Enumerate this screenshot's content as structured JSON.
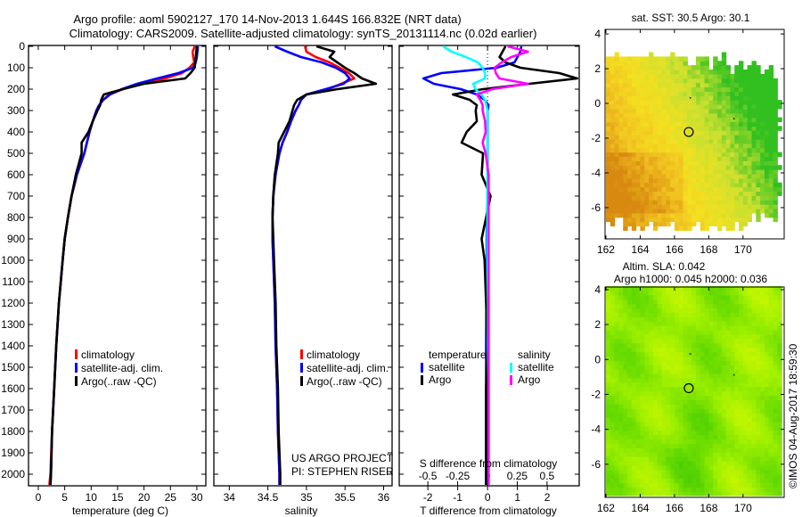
{
  "title": {
    "line1": "Argo profile: aoml 5902127_170 14-Nov-2013 1.644S 166.832E (NRT data)",
    "line2": "Climatology: CARS2009. Satellite-adjusted climatology: synTS_20131114.nc (0.02d earlier)"
  },
  "credit": "©IMOS 04-Aug-2017 18:59:30",
  "project": {
    "line1": "US ARGO PROJECT",
    "line2": "PI: STEPHEN RISER"
  },
  "colors": {
    "climatology": "#ff0000",
    "satellite": "#0000ff",
    "argo": "#000000",
    "sat_salinity": "#00ffff",
    "argo_salinity": "#ff00ff"
  },
  "depth_ticks": [
    "0",
    "100",
    "200",
    "300",
    "400",
    "500",
    "600",
    "700",
    "800",
    "900",
    "1000",
    "1100",
    "1200",
    "1300",
    "1400",
    "1500",
    "1600",
    "1700",
    "1800",
    "1900",
    "2000"
  ],
  "chart_data": [
    {
      "type": "line",
      "name": "temperature",
      "xlabel": "temperature (deg C)",
      "ylabel": "depth",
      "xlim": [
        -1.85,
        31.7
      ],
      "ylim": [
        2055,
        0
      ],
      "xticks": [
        "0",
        "5",
        "10",
        "15",
        "20",
        "25",
        "30"
      ],
      "legend": [
        "climatology",
        "satellite-adj. clim.",
        "Argo(..raw -QC)"
      ],
      "depth": [
        0,
        25,
        50,
        75,
        100,
        125,
        150,
        175,
        200,
        225,
        250,
        275,
        300,
        350,
        400,
        450,
        500,
        600,
        700,
        800,
        900,
        1000,
        1200,
        1400,
        1600,
        1800,
        2000,
        2050
      ],
      "series": [
        {
          "name": "climatology",
          "color": "#ff0000",
          "values": [
            29.6,
            29.2,
            29.3,
            29.5,
            28.6,
            27.2,
            24.0,
            19.5,
            16.0,
            13.4,
            12.3,
            11.5,
            11.0,
            10.3,
            9.7,
            9.2,
            8.7,
            7.3,
            6.3,
            5.6,
            5.0,
            4.6,
            3.9,
            3.4,
            3.0,
            2.6,
            2.3,
            2.1
          ]
        },
        {
          "name": "satellite-adj. clim.",
          "color": "#0000ff",
          "values": [
            30.2,
            30.1,
            30.0,
            29.8,
            29.3,
            26.5,
            22.5,
            18.7,
            15.8,
            13.6,
            12.3,
            11.5,
            11.0,
            10.3,
            9.7,
            9.2,
            8.7,
            7.3,
            6.3,
            5.6,
            5.0,
            4.6,
            3.9,
            3.4,
            3.0,
            2.6,
            2.4,
            2.3
          ]
        },
        {
          "name": "Argo(..raw -QC)",
          "color": "#000000",
          "values": [
            30.0,
            29.9,
            29.8,
            29.7,
            29.6,
            28.8,
            27.8,
            20.0,
            16.0,
            12.4,
            11.9,
            11.7,
            11.2,
            10.3,
            9.5,
            8.2,
            8.2,
            7.1,
            6.3,
            5.6,
            5.0,
            4.6,
            3.9,
            3.4,
            3.0,
            2.6,
            2.4,
            2.3
          ]
        }
      ]
    },
    {
      "type": "line",
      "name": "salinity",
      "xlabel": "salinity",
      "ylabel": "depth",
      "xlim": [
        33.8,
        36.11
      ],
      "ylim": [
        2055,
        0
      ],
      "xticks": [
        "34",
        "34.5",
        "35",
        "35.5",
        "36"
      ],
      "legend": [
        "climatology",
        "satellite-adj. clim.",
        "Argo(..raw -QC)"
      ],
      "depth": [
        0,
        25,
        50,
        75,
        100,
        125,
        150,
        175,
        200,
        225,
        250,
        275,
        300,
        350,
        400,
        450,
        500,
        600,
        700,
        800,
        900,
        1000,
        1200,
        1400,
        1600,
        1800,
        2000,
        2050
      ],
      "series": [
        {
          "name": "climatology",
          "color": "#ff0000",
          "values": [
            34.98,
            35.0,
            35.12,
            35.3,
            35.43,
            35.55,
            35.62,
            35.45,
            35.28,
            35.0,
            34.93,
            34.9,
            34.86,
            34.8,
            34.75,
            34.69,
            34.65,
            34.59,
            34.57,
            34.56,
            34.56,
            34.57,
            34.59,
            34.6,
            34.62,
            34.63,
            34.65,
            34.65
          ]
        },
        {
          "name": "satellite-adj. clim.",
          "color": "#0000ff",
          "values": [
            34.59,
            34.75,
            34.93,
            35.2,
            35.38,
            35.5,
            35.56,
            35.48,
            35.25,
            35.0,
            34.93,
            34.9,
            34.86,
            34.8,
            34.75,
            34.69,
            34.65,
            34.6,
            34.57,
            34.56,
            34.56,
            34.57,
            34.59,
            34.6,
            34.62,
            34.63,
            34.65,
            34.65
          ]
        },
        {
          "name": "Argo(..raw -QC)",
          "color": "#000000",
          "values": [
            35.13,
            35.36,
            35.3,
            35.4,
            35.5,
            35.62,
            35.72,
            35.9,
            35.4,
            35.0,
            34.88,
            34.84,
            34.82,
            34.78,
            34.71,
            34.64,
            34.63,
            34.59,
            34.57,
            34.56,
            34.57,
            34.58,
            34.6,
            34.61,
            34.63,
            34.64,
            34.66,
            34.66
          ]
        }
      ]
    },
    {
      "type": "line",
      "name": "difference",
      "xlabel": "T difference from climatology",
      "x2label": "S difference from climatology",
      "ylabel": "depth",
      "xlim": [
        -2.96,
        3.07
      ],
      "x2lim": [
        -0.74,
        0.77
      ],
      "ylim": [
        2055,
        0
      ],
      "xticks": [
        "-2",
        "-1",
        "0",
        "1",
        "2"
      ],
      "x2ticks": [
        "-0.5",
        "-0.25",
        "0",
        "0.25",
        "0.5"
      ],
      "legend": {
        "temperature": "temperature",
        "salinity": "salinity",
        "satellite": "satellite",
        "argo": "Argo"
      },
      "depth": [
        0,
        25,
        50,
        75,
        100,
        125,
        150,
        175,
        200,
        225,
        250,
        275,
        300,
        350,
        400,
        450,
        500,
        600,
        700,
        800,
        900,
        1000,
        1200,
        1400,
        1600,
        1800,
        2000,
        2050
      ],
      "series": [
        {
          "name": "T satellite",
          "axis": "T",
          "color": "#0000ff",
          "values": [
            1.13,
            1.1,
            1.0,
            0.9,
            0.3,
            -1.55,
            -2.15,
            -1.8,
            -0.9,
            -0.35,
            -0.1,
            0.03,
            0.0,
            0.0,
            0.0,
            0.0,
            0.0,
            0.0,
            0.0,
            -0.02,
            -0.03,
            -0.03,
            -0.04,
            -0.05,
            -0.05,
            -0.05,
            -0.05,
            -0.05
          ]
        },
        {
          "name": "T Argo",
          "axis": "T",
          "color": "#000000",
          "values": [
            0.6,
            0.5,
            0.4,
            0.6,
            1.1,
            2.4,
            3.0,
            1.4,
            -0.15,
            -1.16,
            -0.6,
            -0.36,
            -0.4,
            -0.36,
            -0.7,
            -0.87,
            -0.15,
            -0.2,
            0.1,
            -0.05,
            -0.2,
            -0.1,
            -0.05,
            0.0,
            -0.05,
            -0.05,
            -0.05,
            -0.05
          ]
        },
        {
          "name": "S satellite",
          "axis": "S",
          "color": "#00ffff",
          "values": [
            -0.37,
            -0.3,
            -0.18,
            -0.08,
            -0.04,
            -0.02,
            -0.02,
            -0.12,
            -0.1,
            -0.05,
            -0.02,
            -0.01,
            0.0,
            0.0,
            0.0,
            0.0,
            0.0,
            0.0,
            0.0,
            0.0,
            0.0,
            0.0,
            0.005,
            0.005,
            0.01,
            0.01,
            0.01,
            0.01
          ]
        },
        {
          "name": "S Argo",
          "axis": "S",
          "color": "#ff00ff",
          "values": [
            0.17,
            0.34,
            0.2,
            0.12,
            0.06,
            0.07,
            0.1,
            0.34,
            0.04,
            -0.09,
            -0.06,
            -0.04,
            -0.04,
            -0.02,
            -0.015,
            -0.04,
            -0.015,
            0.01,
            0.01,
            0.01,
            0.01,
            0.01,
            0.01,
            0.01,
            0.01,
            0.01,
            0.01,
            0.01
          ]
        }
      ]
    },
    {
      "type": "heatmap",
      "name": "sst-map",
      "title": "sat. SST: 30.5 Argo: 30.1",
      "xlim": [
        161.95,
        172.4
      ],
      "ylim": [
        -7.8,
        4.26
      ],
      "xticks": [
        "162",
        "164",
        "166",
        "168",
        "170"
      ],
      "yticks": [
        "4",
        "2",
        "0",
        "-2",
        "-4",
        "-6"
      ],
      "profile_location": [
        166.832,
        -1.644
      ],
      "palette": [
        "#d88a10",
        "#f0c020",
        "#f4e020",
        "#c8e030",
        "#30c020"
      ]
    },
    {
      "type": "heatmap",
      "name": "sla-map",
      "title": "Altim. SLA: 0.042",
      "subtitle": "Argo h1000: 0.045 h2000: 0.036",
      "xlim": [
        161.95,
        172.4
      ],
      "ylim": [
        -7.9,
        4.15
      ],
      "xticks": [
        "162",
        "164",
        "166",
        "168",
        "170"
      ],
      "yticks": [
        "4",
        "2",
        "0",
        "-2",
        "-4",
        "-6"
      ],
      "profile_location": [
        166.832,
        -1.644
      ],
      "palette": [
        "#30c010",
        "#60d800",
        "#a0f000",
        "#d8f800"
      ]
    }
  ]
}
